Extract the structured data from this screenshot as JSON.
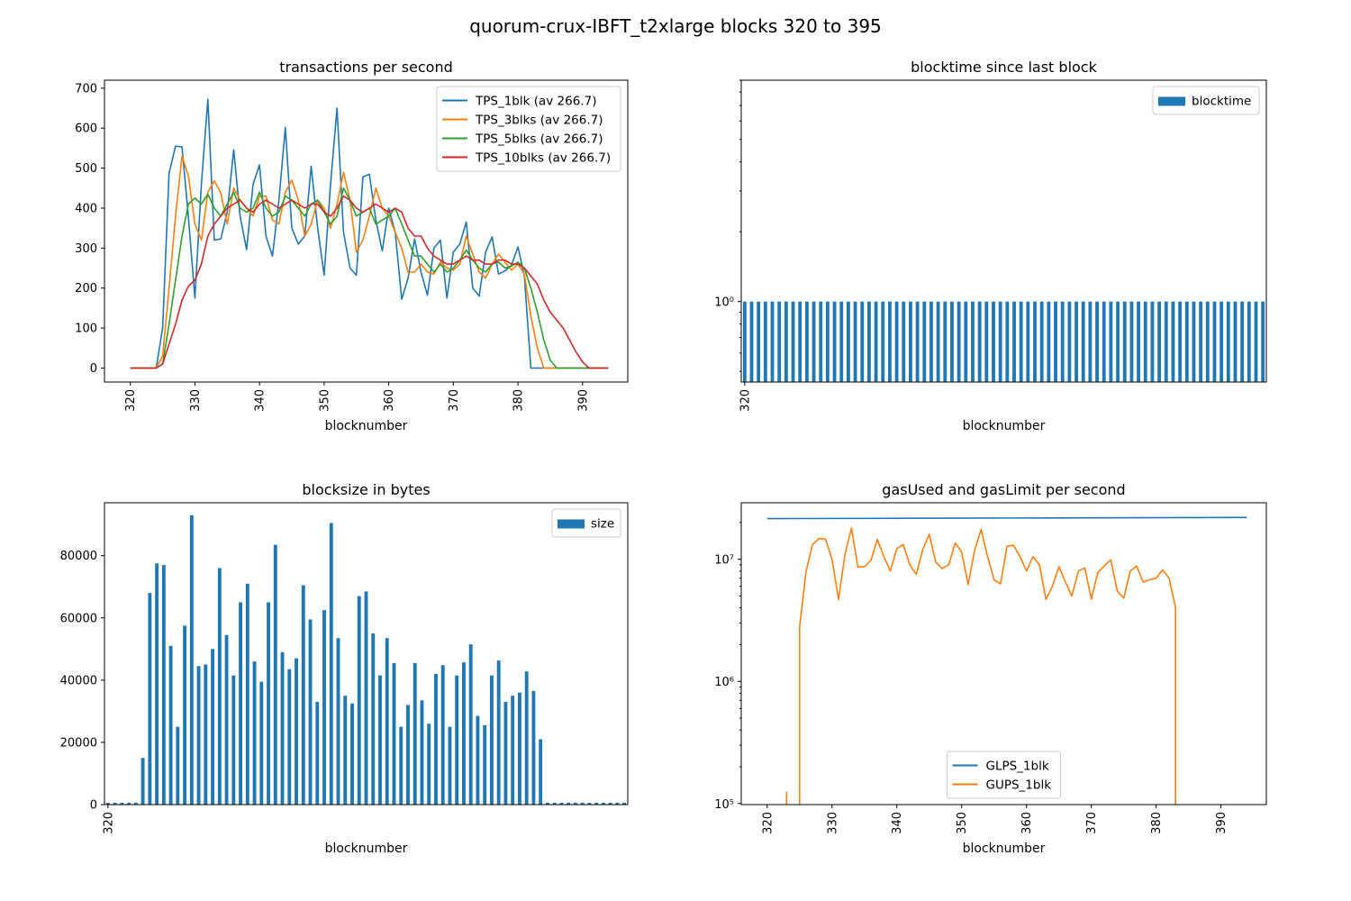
{
  "figure_title": "quorum-crux-IBFT_t2xlarge blocks 320 to 395",
  "colors": {
    "blue": "#1f77b4",
    "orange": "#ff7f0e",
    "green": "#2ca02c",
    "red": "#d62728"
  },
  "chart_data": [
    {
      "id": "tps",
      "type": "line",
      "title": "transactions per second",
      "xlabel": "blocknumber",
      "ylabel": "",
      "xlim": [
        316,
        397
      ],
      "ylim": [
        -35,
        720
      ],
      "xticks": [
        320,
        330,
        340,
        350,
        360,
        370,
        380,
        390
      ],
      "yticks": [
        0,
        100,
        200,
        300,
        400,
        500,
        600,
        700
      ],
      "legend_position": "top-right",
      "x_start": 320,
      "series": [
        {
          "name": "TPS_1blk (av 266.7)",
          "color": "blue",
          "values": [
            0,
            0,
            0,
            0,
            0,
            100,
            487,
            555,
            553,
            377,
            175,
            460,
            672,
            320,
            323,
            390,
            546,
            380,
            296,
            460,
            508,
            330,
            280,
            420,
            602,
            350,
            310,
            330,
            505,
            350,
            232,
            460,
            650,
            340,
            250,
            232,
            478,
            485,
            370,
            293,
            400,
            340,
            172,
            225,
            323,
            240,
            182,
            300,
            320,
            175,
            290,
            310,
            365,
            200,
            180,
            290,
            328,
            235,
            243,
            257,
            303,
            230,
            0,
            0,
            0,
            0,
            0,
            0,
            0,
            0,
            0,
            0,
            0,
            0,
            0
          ]
        },
        {
          "name": "TPS_3blks (av 266.7)",
          "color": "orange",
          "values": [
            0,
            0,
            0,
            0,
            0,
            30,
            200,
            380,
            530,
            480,
            360,
            320,
            440,
            468,
            438,
            360,
            450,
            420,
            400,
            380,
            430,
            430,
            370,
            360,
            440,
            470,
            420,
            330,
            360,
            420,
            400,
            350,
            410,
            490,
            420,
            290,
            320,
            380,
            450,
            400,
            380,
            340,
            300,
            240,
            240,
            260,
            240,
            235,
            265,
            250,
            245,
            260,
            330,
            285,
            240,
            225,
            260,
            285,
            265,
            245,
            260,
            235,
            130,
            50,
            0,
            0,
            0,
            0,
            0,
            0,
            0,
            0,
            0,
            0,
            0
          ]
        },
        {
          "name": "TPS_5blks (av 266.7)",
          "color": "green",
          "values": [
            0,
            0,
            0,
            0,
            0,
            10,
            110,
            220,
            330,
            410,
            425,
            410,
            435,
            400,
            380,
            410,
            440,
            400,
            390,
            400,
            440,
            400,
            380,
            390,
            430,
            420,
            400,
            380,
            410,
            420,
            390,
            360,
            380,
            450,
            420,
            380,
            390,
            400,
            360,
            370,
            380,
            400,
            360,
            320,
            280,
            280,
            260,
            240,
            260,
            240,
            250,
            270,
            295,
            270,
            250,
            240,
            260,
            265,
            250,
            255,
            265,
            250,
            200,
            140,
            70,
            20,
            0,
            0,
            0,
            0,
            0,
            0,
            0,
            0,
            0
          ]
        },
        {
          "name": "TPS_10blks (av 266.7)",
          "color": "red",
          "values": [
            0,
            0,
            0,
            0,
            0,
            10,
            60,
            110,
            170,
            205,
            220,
            260,
            330,
            360,
            380,
            400,
            410,
            420,
            400,
            390,
            410,
            420,
            410,
            400,
            410,
            420,
            410,
            400,
            410,
            410,
            390,
            380,
            400,
            430,
            420,
            400,
            390,
            400,
            410,
            400,
            390,
            400,
            390,
            350,
            330,
            330,
            300,
            280,
            270,
            260,
            260,
            270,
            280,
            270,
            270,
            260,
            260,
            270,
            270,
            260,
            260,
            250,
            230,
            210,
            170,
            140,
            120,
            100,
            70,
            40,
            15,
            0,
            0,
            0,
            0
          ]
        }
      ]
    },
    {
      "id": "blocktime",
      "type": "bar",
      "title": "blocktime since last block",
      "xlabel": "blocknumber",
      "ylabel": "",
      "yscale": "log",
      "y_tick_label": "10⁰",
      "y_tick_value": 1,
      "xtick_label": "320",
      "legend_position": "top-right",
      "series": [
        {
          "name": "blocktime",
          "color": "blue",
          "values": [
            1,
            1,
            1,
            1,
            1,
            1,
            1,
            1,
            1,
            1,
            1,
            1,
            1,
            1,
            1,
            1,
            1,
            1,
            1,
            1,
            1,
            1,
            1,
            1,
            1,
            1,
            1,
            1,
            1,
            1,
            1,
            1,
            1,
            1,
            1,
            1,
            1,
            1,
            1,
            1,
            1,
            1,
            1,
            1,
            1,
            1,
            1,
            1,
            1,
            1,
            1,
            1,
            1,
            1,
            1,
            1,
            1,
            1,
            1,
            1,
            1,
            1,
            1,
            1,
            1,
            1,
            1,
            1,
            1,
            1,
            1,
            1,
            1,
            1,
            1,
            1
          ]
        }
      ]
    },
    {
      "id": "blocksize",
      "type": "bar",
      "title": "blocksize in bytes",
      "xlabel": "blocknumber",
      "ylabel": "",
      "ylim": [
        0,
        97000
      ],
      "yticks": [
        0,
        20000,
        40000,
        60000,
        80000
      ],
      "xtick_label": "320",
      "legend_position": "top-right",
      "series": [
        {
          "name": "size",
          "color": "blue",
          "values": [
            600,
            600,
            600,
            600,
            600,
            15000,
            68000,
            77500,
            77000,
            51000,
            25000,
            57500,
            93000,
            44500,
            45000,
            50000,
            76000,
            54500,
            41500,
            65000,
            71000,
            46000,
            39500,
            65000,
            83500,
            49000,
            43500,
            47000,
            70500,
            59500,
            33000,
            62500,
            90500,
            53500,
            35000,
            32500,
            67000,
            68500,
            55000,
            41500,
            53500,
            45500,
            25000,
            32000,
            45500,
            33500,
            26000,
            42000,
            44800,
            25000,
            41500,
            45700,
            51500,
            28500,
            25500,
            41500,
            46300,
            33000,
            35000,
            36000,
            42800,
            36500,
            21000,
            600,
            600,
            600,
            600,
            600,
            600,
            600,
            600,
            600,
            600,
            600,
            600
          ]
        }
      ]
    },
    {
      "id": "gas",
      "type": "line",
      "title": "gasUsed and gasLimit per second",
      "xlabel": "blocknumber",
      "ylabel": "",
      "yscale": "log",
      "xlim": [
        316,
        397
      ],
      "xticks": [
        320,
        330,
        340,
        350,
        360,
        370,
        380,
        390
      ],
      "yticks": [
        {
          "value": 100000,
          "label": "10⁵"
        },
        {
          "value": 1000000,
          "label": "10⁶"
        },
        {
          "value": 10000000,
          "label": "10⁷"
        }
      ],
      "legend_position": "lower-center",
      "series": [
        {
          "name": "GLPS_1blk",
          "color": "blue",
          "points": [
            [
              320,
              21500000
            ],
            [
              394,
              22000000
            ]
          ]
        },
        {
          "name": "GUPS_1blk",
          "color": "orange",
          "segments": [
            [
              [
                323,
                125000
              ],
              [
                323,
                95000
              ]
            ],
            [
              [
                325,
                95000
              ],
              [
                325,
                2800000
              ],
              [
                326,
                8000000
              ],
              [
                327,
                13200000
              ],
              [
                328,
                14800000
              ],
              [
                329,
                14600000
              ],
              [
                330,
                10000000
              ],
              [
                331,
                4700000
              ],
              [
                332,
                11000000
              ],
              [
                333,
                18000000
              ],
              [
                334,
                8600000
              ],
              [
                335,
                8700000
              ],
              [
                336,
                9800000
              ],
              [
                337,
                14500000
              ],
              [
                338,
                10500000
              ],
              [
                339,
                8000000
              ],
              [
                340,
                12200000
              ],
              [
                341,
                13200000
              ],
              [
                342,
                9000000
              ],
              [
                343,
                7500000
              ],
              [
                344,
                12000000
              ],
              [
                345,
                16000000
              ],
              [
                346,
                9500000
              ],
              [
                347,
                8400000
              ],
              [
                348,
                9000000
              ],
              [
                349,
                13600000
              ],
              [
                350,
                11500000
              ],
              [
                351,
                6200000
              ],
              [
                352,
                11800000
              ],
              [
                353,
                17500000
              ],
              [
                354,
                10500000
              ],
              [
                355,
                6800000
              ],
              [
                356,
                6300000
              ],
              [
                357,
                12800000
              ],
              [
                358,
                13000000
              ],
              [
                359,
                10500000
              ],
              [
                360,
                8000000
              ],
              [
                361,
                10500000
              ],
              [
                362,
                9000000
              ],
              [
                363,
                4700000
              ],
              [
                364,
                6000000
              ],
              [
                365,
                8700000
              ],
              [
                366,
                6500000
              ],
              [
                367,
                5000000
              ],
              [
                368,
                8000000
              ],
              [
                369,
                8500000
              ],
              [
                370,
                4700000
              ],
              [
                371,
                7800000
              ],
              [
                372,
                8800000
              ],
              [
                373,
                9900000
              ],
              [
                374,
                5500000
              ],
              [
                375,
                4800000
              ],
              [
                376,
                8000000
              ],
              [
                377,
                8800000
              ],
              [
                378,
                6500000
              ],
              [
                379,
                6800000
              ],
              [
                380,
                7000000
              ],
              [
                381,
                8200000
              ],
              [
                382,
                7000000
              ],
              [
                383,
                4000000
              ],
              [
                383,
                95000
              ]
            ]
          ]
        }
      ]
    }
  ]
}
